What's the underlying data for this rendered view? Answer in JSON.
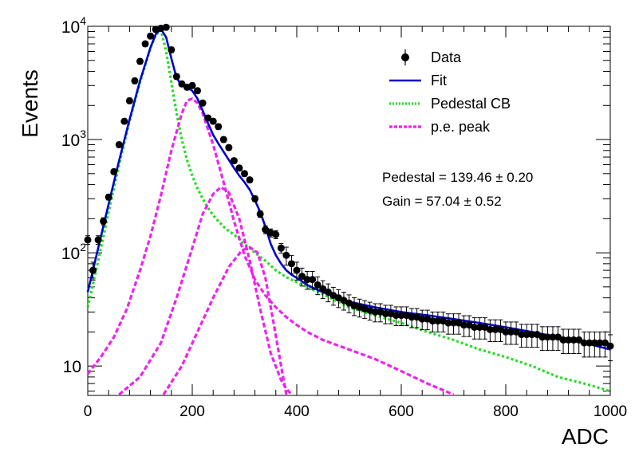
{
  "chart_data": {
    "type": "scatter",
    "title": "",
    "xlabel": "ADC",
    "ylabel": "Events",
    "xlim": [
      0,
      1000
    ],
    "ylim": [
      5.5,
      10000
    ],
    "yscale": "log",
    "grid": false,
    "x_ticks": [
      0,
      200,
      400,
      600,
      800,
      1000
    ],
    "y_ticks": [
      {
        "value": 10,
        "base": "10",
        "exp": ""
      },
      {
        "value": 100,
        "base": "10",
        "exp": "2"
      },
      {
        "value": 1000,
        "base": "10",
        "exp": "3"
      },
      {
        "value": 10000,
        "base": "10",
        "exp": "4"
      }
    ],
    "legend": {
      "placement": "top-right",
      "entries": [
        {
          "label": "Data",
          "kind": "marker",
          "color": "#000000"
        },
        {
          "label": "Fit",
          "kind": "line",
          "color": "#0000cc"
        },
        {
          "label": "Pedestal CB",
          "kind": "dotted",
          "color": "#22dd22"
        },
        {
          "label": "p.e. peak",
          "kind": "dashed",
          "color": "#ee22ee"
        }
      ]
    },
    "annotations": [
      {
        "text": "Pedestal = 139.46 ± 0.20"
      },
      {
        "text": "Gain = 57.04 ± 0.52"
      }
    ],
    "series": [
      {
        "name": "Data",
        "kind": "points",
        "color": "#000000",
        "x": [
          0,
          10,
          20,
          30,
          40,
          50,
          60,
          70,
          80,
          90,
          100,
          110,
          120,
          130,
          140,
          150,
          160,
          170,
          180,
          190,
          200,
          210,
          220,
          230,
          240,
          250,
          260,
          270,
          280,
          290,
          300,
          310,
          320,
          330,
          340,
          350,
          360,
          370,
          380,
          390,
          400,
          410,
          420,
          430,
          440,
          450,
          460,
          470,
          480,
          490,
          500,
          510,
          520,
          530,
          540,
          550,
          560,
          570,
          580,
          590,
          600,
          610,
          620,
          630,
          640,
          650,
          660,
          670,
          680,
          690,
          700,
          710,
          720,
          730,
          740,
          750,
          760,
          770,
          780,
          790,
          800,
          810,
          820,
          830,
          840,
          850,
          860,
          870,
          880,
          890,
          900,
          910,
          920,
          930,
          940,
          950,
          960,
          970,
          980,
          990,
          1000
        ],
        "y": [
          130,
          70,
          130,
          190,
          310,
          520,
          900,
          1450,
          2200,
          3300,
          4900,
          7000,
          8200,
          9400,
          9600,
          9800,
          6200,
          3600,
          3100,
          2900,
          3000,
          2700,
          2100,
          1550,
          1450,
          1300,
          1000,
          850,
          650,
          560,
          500,
          440,
          300,
          220,
          160,
          150,
          145,
          110,
          95,
          80,
          70,
          62,
          58,
          58,
          52,
          48,
          45,
          42,
          40,
          38,
          36,
          34,
          33,
          32,
          31,
          30,
          30,
          29,
          29,
          28,
          28,
          28,
          27,
          27,
          26,
          26,
          25,
          25,
          25,
          24,
          24,
          24,
          23,
          23,
          22,
          22,
          22,
          21,
          21,
          21,
          20,
          20,
          20,
          19,
          19,
          19,
          19,
          18,
          18,
          18,
          18,
          17,
          17,
          17,
          17,
          16,
          16,
          16,
          16,
          16,
          15
        ],
        "y_err_rel": 0.18
      },
      {
        "name": "Fit",
        "kind": "line",
        "color": "#0000cc",
        "x": [
          0,
          20,
          40,
          60,
          80,
          100,
          120,
          130,
          140,
          150,
          160,
          170,
          180,
          190,
          200,
          210,
          220,
          230,
          240,
          250,
          260,
          270,
          280,
          290,
          300,
          310,
          320,
          330,
          340,
          350,
          360,
          370,
          380,
          390,
          400,
          420,
          440,
          460,
          480,
          500,
          550,
          600,
          650,
          700,
          750,
          800,
          850,
          900,
          950,
          1000
        ],
        "y": [
          45,
          110,
          270,
          650,
          1500,
          3300,
          6500,
          8500,
          9500,
          8000,
          5200,
          3500,
          3000,
          2900,
          2700,
          2300,
          1800,
          1400,
          1100,
          920,
          780,
          660,
          560,
          480,
          420,
          360,
          290,
          230,
          170,
          120,
          95,
          80,
          70,
          64,
          60,
          52,
          47,
          43,
          40,
          37,
          33,
          30,
          28,
          26,
          24,
          22,
          20,
          18,
          16,
          14
        ]
      },
      {
        "name": "Pedestal CB",
        "kind": "dotted",
        "color": "#22dd22",
        "x": [
          0,
          20,
          40,
          60,
          80,
          100,
          120,
          130,
          140,
          150,
          160,
          170,
          180,
          190,
          200,
          210,
          220,
          230,
          240,
          250,
          260,
          270,
          280,
          300,
          320,
          340,
          360,
          380,
          400,
          450,
          500,
          550,
          600,
          650,
          700,
          750,
          800,
          850,
          900,
          950,
          1000
        ],
        "y": [
          33,
          85,
          230,
          600,
          1450,
          3200,
          6400,
          8400,
          9300,
          6000,
          3200,
          1700,
          1000,
          660,
          480,
          370,
          300,
          250,
          215,
          190,
          170,
          155,
          145,
          120,
          100,
          85,
          70,
          61,
          55,
          43,
          33,
          28,
          24,
          20,
          17,
          14,
          12,
          10,
          8,
          7,
          6
        ]
      },
      {
        "name": "p.e. peak 1",
        "kind": "dashed",
        "color": "#ee22ee",
        "x": [
          0,
          25,
          50,
          75,
          100,
          120,
          140,
          160,
          180,
          190,
          200,
          210,
          220,
          240,
          260,
          280,
          300,
          320,
          340,
          360,
          380,
          400,
          420,
          450,
          500,
          550,
          600,
          650,
          700
        ],
        "y": [
          8.5,
          12,
          18,
          32,
          70,
          140,
          320,
          800,
          1700,
          2200,
          2300,
          2100,
          1700,
          900,
          420,
          190,
          95,
          58,
          42,
          33,
          27,
          23,
          20,
          17,
          14,
          11.5,
          9,
          7,
          5.6
        ]
      },
      {
        "name": "p.e. peak 2",
        "kind": "dashed",
        "color": "#ee22ee",
        "x": [
          60,
          100,
          140,
          170,
          200,
          220,
          240,
          255,
          270,
          290,
          310,
          330,
          350,
          370,
          380,
          390
        ],
        "y": [
          5.6,
          8,
          16,
          40,
          110,
          220,
          330,
          380,
          340,
          200,
          85,
          32,
          13,
          7.5,
          6.3,
          5.6
        ]
      },
      {
        "name": "p.e. peak 3",
        "kind": "dashed",
        "color": "#ee22ee",
        "x": [
          145,
          180,
          210,
          240,
          270,
          295,
          310,
          325,
          340,
          355,
          370,
          380
        ],
        "y": [
          5.6,
          10,
          20,
          40,
          75,
          105,
          112,
          100,
          60,
          25,
          10,
          5.6
        ]
      }
    ]
  }
}
